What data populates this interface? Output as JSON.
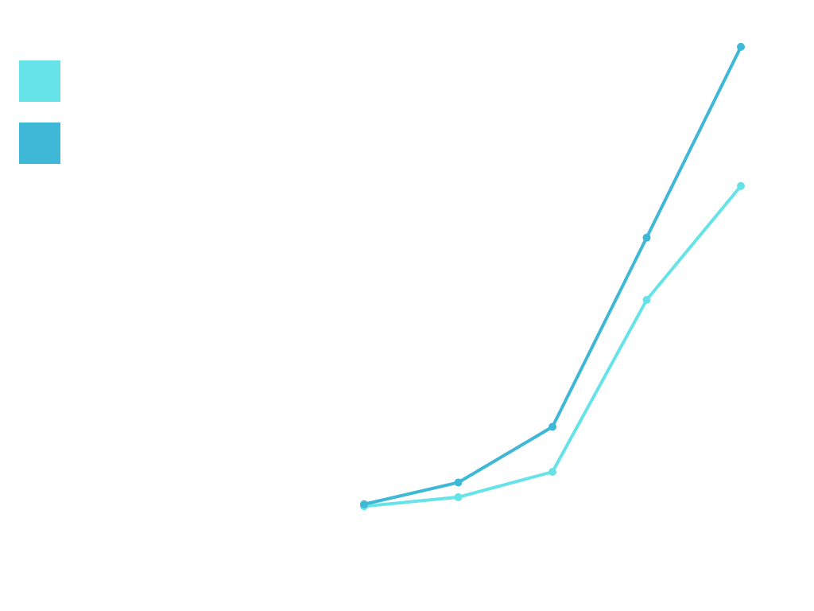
{
  "chart_data": {
    "type": "line",
    "title": "",
    "xlabel": "",
    "ylabel": "",
    "grid": false,
    "legend_position": "top-left",
    "x": [
      1,
      2,
      3,
      4,
      5
    ],
    "ylim": [
      0,
      100
    ],
    "series": [
      {
        "name": "",
        "color": "#66e3e8",
        "values": [
          3.4,
          5.2,
          10.2,
          44.2,
          66.7
        ]
      },
      {
        "name": "",
        "color": "#3fb7d6",
        "values": [
          3.8,
          8.1,
          19.1,
          56.5,
          94.2
        ]
      }
    ]
  }
}
